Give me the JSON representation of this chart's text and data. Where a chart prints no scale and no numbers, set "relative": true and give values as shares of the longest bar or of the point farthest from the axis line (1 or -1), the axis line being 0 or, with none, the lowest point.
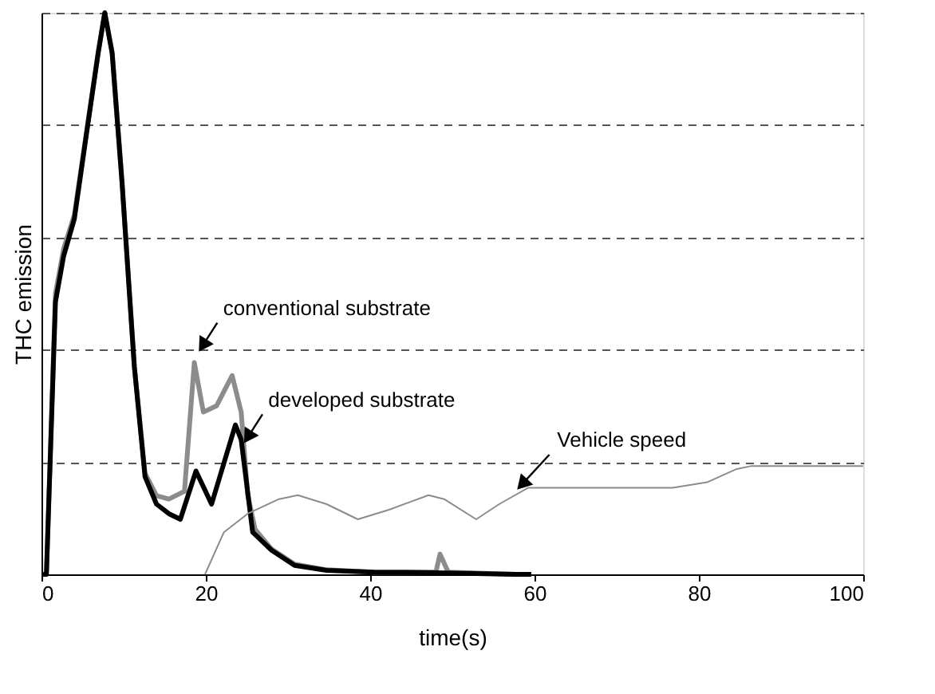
{
  "chart_data": {
    "type": "line",
    "relative": true,
    "xlabel": "time(s)",
    "ylabel": "THC emission",
    "xlim": [
      0,
      100
    ],
    "xticks": [
      0,
      20,
      40,
      60,
      80,
      100
    ],
    "grid": "y",
    "line_style": "solid",
    "marker": "none",
    "series": [
      {
        "color": "#8c8c8c",
        "x": [
          0,
          0.6,
          1.7,
          2.7,
          4,
          5.6,
          6.9,
          7.7,
          8.6,
          9.8,
          11.3,
          12.6,
          14,
          15.5,
          17.4,
          18.6,
          19.7,
          21.3,
          23.2,
          24.3,
          25.1,
          26,
          28,
          30.8,
          34.7,
          40.4,
          48,
          48.5,
          49.5,
          57.7,
          59.6
        ],
        "values": [
          0,
          0,
          0.5,
          0.58,
          0.64,
          0.8,
          0.93,
          1.0,
          0.93,
          0.7,
          0.37,
          0.18,
          0.14,
          0.134,
          0.148,
          0.377,
          0.289,
          0.3,
          0.354,
          0.289,
          0.141,
          0.08,
          0.045,
          0.018,
          0.008,
          0.004,
          0.004,
          0.036,
          0.004,
          0,
          0
        ]
      },
      {
        "color": "#000000",
        "x": [
          0,
          0.6,
          1.7,
          2.7,
          4,
          5.6,
          6.9,
          7.7,
          8.6,
          9.8,
          11.3,
          12.6,
          14,
          15.5,
          16.9,
          18.8,
          20.7,
          23.6,
          24.3,
          25.7,
          28,
          30.8,
          34.7,
          40.4,
          48,
          57.7,
          59.6
        ],
        "values": [
          0,
          0,
          0.485,
          0.567,
          0.633,
          0.797,
          0.928,
          1.0,
          0.928,
          0.698,
          0.37,
          0.174,
          0.125,
          0.108,
          0.098,
          0.184,
          0.125,
          0.266,
          0.24,
          0.075,
          0.043,
          0.016,
          0.007,
          0.004,
          0.003,
          0,
          0
        ]
      },
      {
        "color": "#8c8c8c",
        "x": [
          19.9,
          22.2,
          25.1,
          28.9,
          31.2,
          34.7,
          38.5,
          42.3,
          47.1,
          49,
          52.9,
          55.7,
          59.2,
          63.4,
          76.8,
          81,
          84.5,
          86.4,
          100
        ],
        "values": [
          0,
          0.075,
          0.108,
          0.134,
          0.141,
          0.125,
          0.098,
          0.115,
          0.141,
          0.134,
          0.098,
          0.125,
          0.154,
          0.154,
          0.154,
          0.164,
          0.187,
          0.193,
          0.193
        ]
      }
    ],
    "annotations": [
      {
        "text": "conventional  substrate",
        "x": 19.0,
        "y": 0.393
      },
      {
        "text": "developed  substrate",
        "x": 24.5,
        "y": 0.23
      },
      {
        "text": "Vehicle speed",
        "x": 57.7,
        "y": 0.148
      }
    ]
  }
}
